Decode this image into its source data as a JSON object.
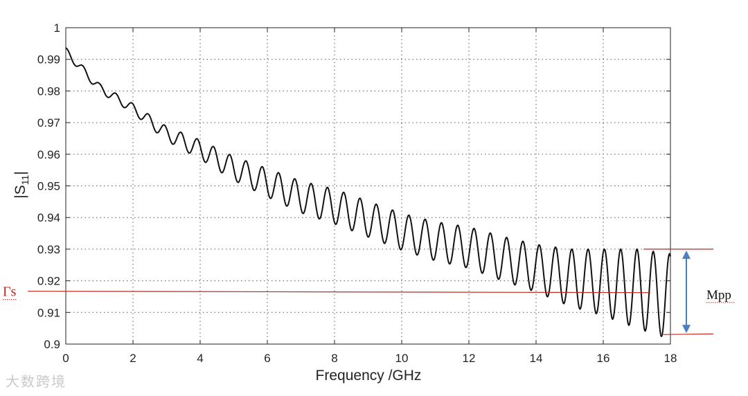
{
  "chart_data": {
    "type": "line",
    "xlabel": "Frequency /GHz",
    "ylabel": "|S11|",
    "ylabel_main": "|S",
    "ylabel_sub": "11",
    "ylabel_close": "|",
    "xlim": [
      0,
      18
    ],
    "ylim": [
      0.9,
      1.0
    ],
    "xticks": [
      "0",
      "2",
      "4",
      "6",
      "8",
      "10",
      "12",
      "14",
      "16",
      "18"
    ],
    "yticks": [
      "0.9",
      "0.91",
      "0.92",
      "0.93",
      "0.94",
      "0.95",
      "0.96",
      "0.97",
      "0.98",
      "0.99",
      "1"
    ],
    "grid": true,
    "series": [
      {
        "color": "#111111",
        "trend_points": [
          [
            0,
            0.9925
          ],
          [
            1,
            0.981
          ],
          [
            2,
            0.9745
          ],
          [
            3,
            0.9665
          ],
          [
            4,
            0.9615
          ],
          [
            5,
            0.9555
          ],
          [
            6,
            0.951
          ],
          [
            7,
            0.9465
          ],
          [
            8,
            0.9435
          ],
          [
            9,
            0.9395
          ],
          [
            10,
            0.9355
          ],
          [
            11,
            0.9325
          ],
          [
            12,
            0.9305
          ],
          [
            13,
            0.927
          ],
          [
            14,
            0.924
          ],
          [
            15,
            0.921
          ],
          [
            16,
            0.9195
          ],
          [
            17,
            0.9175
          ],
          [
            18,
            0.915
          ]
        ],
        "amplitude_points": [
          [
            0,
            0.0012
          ],
          [
            2,
            0.0015
          ],
          [
            4,
            0.003
          ],
          [
            6,
            0.0045
          ],
          [
            8,
            0.0055
          ],
          [
            10,
            0.0058
          ],
          [
            12,
            0.0065
          ],
          [
            14,
            0.0075
          ],
          [
            16,
            0.0105
          ],
          [
            17,
            0.0125
          ],
          [
            18,
            0.0135
          ]
        ],
        "ripple_period_ghz": 0.485
      }
    ],
    "annotations": {
      "gamma_label": "Γs",
      "gamma_value": 0.9167,
      "mpp_label": "Mpp",
      "mpp_top": 0.93,
      "mpp_bottom": 0.903,
      "mpp_x_range": [
        17.2,
        18.2
      ]
    }
  },
  "watermark": "大数跨境",
  "colors": {
    "annotation_red": "#c0261f",
    "arrow_blue": "#4a7fc1",
    "curve": "#111111"
  }
}
